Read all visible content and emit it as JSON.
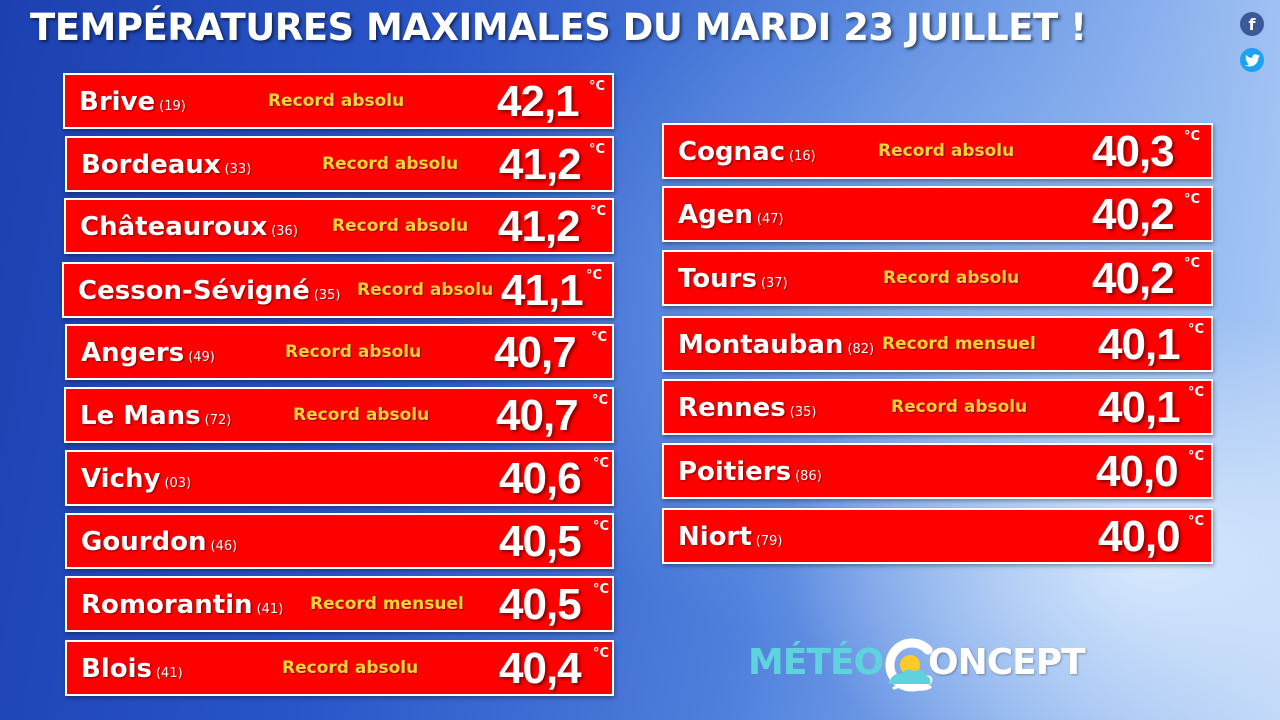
{
  "title": "TEMPÉRATURES MAXIMALES DU MARDI 23 JUILLET !",
  "social": {
    "facebook_icon": "facebook-icon",
    "facebook_glyph": "f",
    "twitter_icon": "twitter-icon"
  },
  "unit": "°C",
  "left_column": [
    {
      "city": "Brive",
      "dept": "(19)",
      "record": "Record absolu",
      "temp": "42,1"
    },
    {
      "city": "Bordeaux",
      "dept": "(33)",
      "record": "Record absolu",
      "temp": "41,2"
    },
    {
      "city": "Châteauroux",
      "dept": "(36)",
      "record": "Record absolu",
      "temp": "41,2"
    },
    {
      "city": "Cesson-Sévigné",
      "dept": "(35)",
      "record": "Record absolu",
      "temp": "41,1"
    },
    {
      "city": "Angers",
      "dept": "(49)",
      "record": "Record absolu",
      "temp": "40,7"
    },
    {
      "city": "Le Mans",
      "dept": "(72)",
      "record": "Record absolu",
      "temp": "40,7"
    },
    {
      "city": "Vichy",
      "dept": "(03)",
      "record": "",
      "temp": "40,6"
    },
    {
      "city": "Gourdon",
      "dept": "(46)",
      "record": "",
      "temp": "40,5"
    },
    {
      "city": "Romorantin",
      "dept": "(41)",
      "record": "Record mensuel",
      "temp": "40,5"
    },
    {
      "city": "Blois",
      "dept": "(41)",
      "record": "Record absolu",
      "temp": "40,4"
    }
  ],
  "right_column": [
    {
      "city": "Cognac",
      "dept": "(16)",
      "record": "Record absolu",
      "temp": "40,3"
    },
    {
      "city": "Agen",
      "dept": "(47)",
      "record": "",
      "temp": "40,2"
    },
    {
      "city": "Tours",
      "dept": "(37)",
      "record": "Record absolu",
      "temp": "40,2"
    },
    {
      "city": "Montauban",
      "dept": "(82)",
      "record": "Record mensuel",
      "temp": "40,1"
    },
    {
      "city": "Rennes",
      "dept": "(35)",
      "record": "Record absolu",
      "temp": "40,1"
    },
    {
      "city": "Poitiers",
      "dept": "(86)",
      "record": "",
      "temp": "40,0"
    },
    {
      "city": "Niort",
      "dept": "(79)",
      "record": "",
      "temp": "40,0"
    }
  ],
  "logo": {
    "part1": "MÉTÉO",
    "part2": "ONCEPT",
    "icon": "sun-cloud-logo-icon"
  },
  "colors": {
    "row_background": "#ff0000",
    "row_border": "#ffffff",
    "record_text": "#ffd23a",
    "logo_cyan": "#5fd3dd"
  }
}
